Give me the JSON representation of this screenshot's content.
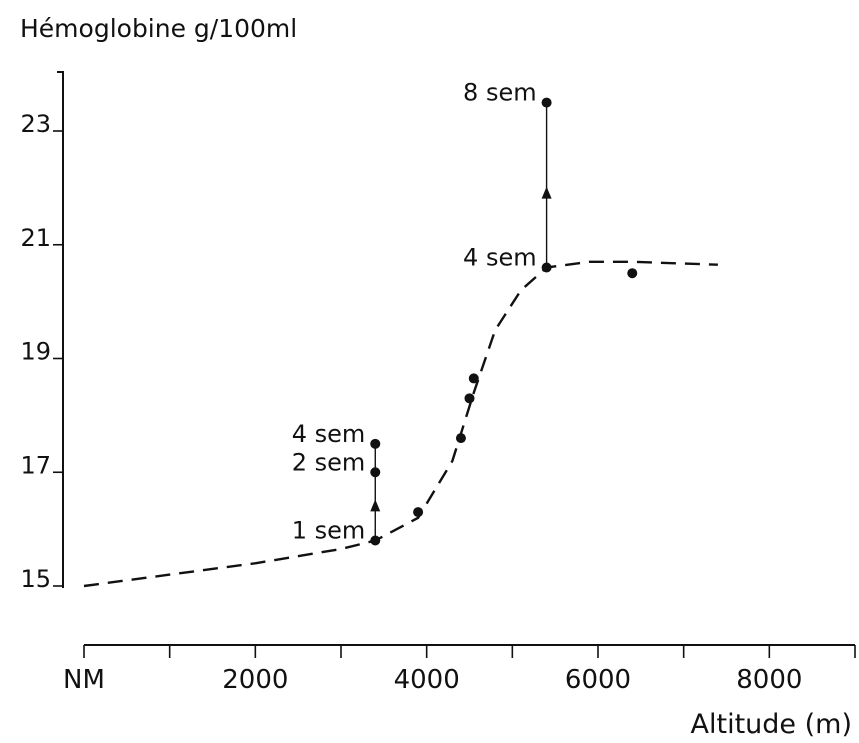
{
  "chart_data": {
    "type": "line",
    "title": "Hémoglobine g/100ml",
    "ylabel": "Hémoglobine g/100ml",
    "xlabel": "Altitude (m)",
    "xlim": [
      0,
      9000
    ],
    "ylim": [
      15,
      24
    ],
    "x_ticks": [
      {
        "value": 0,
        "label": "NM"
      },
      {
        "value": 1000,
        "label": ""
      },
      {
        "value": 2000,
        "label": "2000"
      },
      {
        "value": 3000,
        "label": ""
      },
      {
        "value": 4000,
        "label": "4000"
      },
      {
        "value": 5000,
        "label": ""
      },
      {
        "value": 6000,
        "label": "6000"
      },
      {
        "value": 7000,
        "label": ""
      },
      {
        "value": 8000,
        "label": "8000"
      },
      {
        "value": 9000,
        "label": ""
      }
    ],
    "y_ticks": [
      {
        "value": 15,
        "label": "15"
      },
      {
        "value": 17,
        "label": "17"
      },
      {
        "value": 19,
        "label": "19"
      },
      {
        "value": 21,
        "label": "21"
      },
      {
        "value": 23,
        "label": "23"
      }
    ],
    "series": [
      {
        "style": "dashed",
        "x": [
          0,
          1000,
          2000,
          3000,
          3400,
          3900,
          4300,
          4550,
          4800,
          5100,
          5400,
          5900,
          6400,
          7400
        ],
        "y": [
          15.0,
          15.2,
          15.4,
          15.65,
          15.8,
          16.2,
          17.2,
          18.4,
          19.5,
          20.2,
          20.6,
          20.7,
          20.7,
          20.65
        ]
      }
    ],
    "points": [
      {
        "x": 3400,
        "y": 15.8,
        "label": "1 sem"
      },
      {
        "x": 3400,
        "y": 17.0,
        "label": "2 sem"
      },
      {
        "x": 3400,
        "y": 17.5,
        "label": "4 sem"
      },
      {
        "x": 3900,
        "y": 16.3,
        "label": ""
      },
      {
        "x": 4400,
        "y": 17.6,
        "label": ""
      },
      {
        "x": 4500,
        "y": 18.3,
        "label": ""
      },
      {
        "x": 4550,
        "y": 18.65,
        "label": ""
      },
      {
        "x": 5400,
        "y": 20.6,
        "label": "4 sem"
      },
      {
        "x": 5400,
        "y": 23.5,
        "label": "8 sem"
      },
      {
        "x": 6400,
        "y": 20.5,
        "label": ""
      }
    ],
    "arrows": [
      {
        "x": 3400,
        "y_from": 15.8,
        "y_to": 17.5,
        "head_y": 16.4
      },
      {
        "x": 5400,
        "y_from": 20.6,
        "y_to": 23.5,
        "head_y": 21.9
      }
    ],
    "grid": false,
    "legend": "none"
  }
}
